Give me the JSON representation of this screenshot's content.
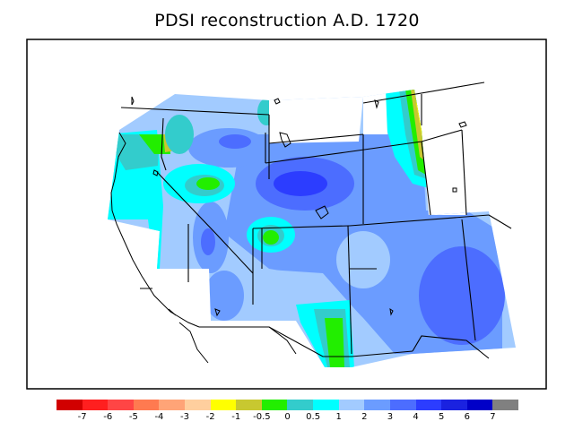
{
  "title": "PDSI reconstruction A.D. 1720",
  "colorbar": {
    "colors": [
      "#d10000",
      "#ff1f1f",
      "#ff4545",
      "#ff7a50",
      "#ffa477",
      "#ffcf9e",
      "#ffff00",
      "#c8c830",
      "#22ee00",
      "#33cccc",
      "#00ffff",
      "#a2cbff",
      "#6b9cff",
      "#4c6dff",
      "#2c3dff",
      "#1a22e0",
      "#0000c8",
      "#808080"
    ],
    "labels": [
      "-7",
      "-6",
      "-5",
      "-4",
      "-3",
      "-2",
      "-1",
      "-0.5",
      "0",
      "0.5",
      "1",
      "2",
      "3",
      "4",
      "5",
      "6",
      "7"
    ]
  },
  "legend_colors": {
    "boundary": "#000000",
    "frame": "#000000"
  }
}
